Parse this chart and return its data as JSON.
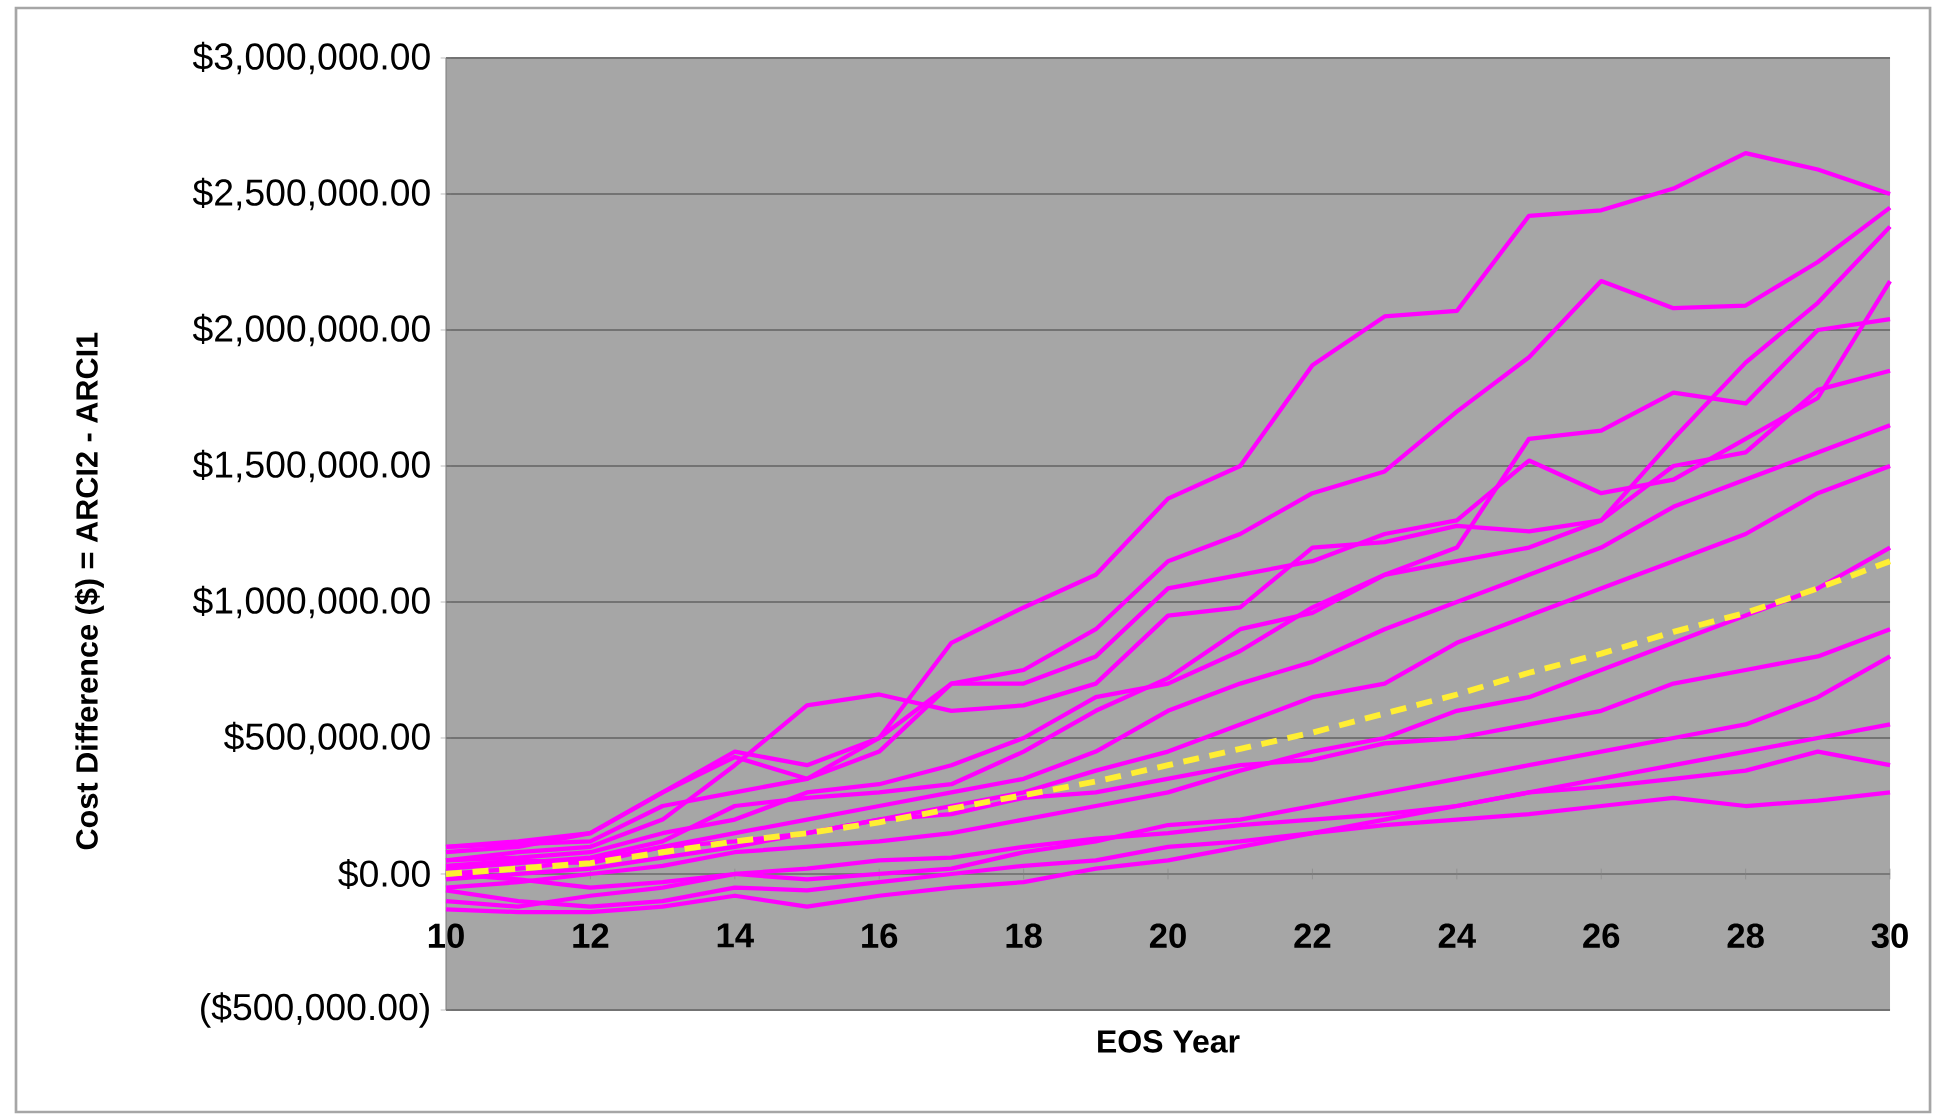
{
  "chart_data": {
    "type": "line",
    "xlabel": "EOS Year",
    "ylabel": "Cost Difference ($) = ARCI2 - ARCI1",
    "x": [
      10,
      11,
      12,
      13,
      14,
      15,
      16,
      17,
      18,
      19,
      20,
      21,
      22,
      23,
      24,
      25,
      26,
      27,
      28,
      29,
      30
    ],
    "xlim": [
      10,
      30
    ],
    "xticks": [
      10,
      12,
      14,
      16,
      18,
      20,
      22,
      24,
      26,
      28,
      30
    ],
    "ylim": [
      -500000,
      3000000
    ],
    "yticks": [
      {
        "value": -500000,
        "label": "($500,000.00)"
      },
      {
        "value": 0,
        "label": "$0.00"
      },
      {
        "value": 500000,
        "label": "$500,000.00"
      },
      {
        "value": 1000000,
        "label": "$1,000,000.00"
      },
      {
        "value": 1500000,
        "label": "$1,500,000.00"
      },
      {
        "value": 2000000,
        "label": "$2,000,000.00"
      },
      {
        "value": 2500000,
        "label": "$2,500,000.00"
      },
      {
        "value": 3000000,
        "label": "$3,000,000.00"
      }
    ],
    "grid": "y",
    "marker": "none",
    "series": [
      {
        "color": "#ff00ff",
        "values": [
          100000,
          120000,
          150000,
          300000,
          450000,
          400000,
          500000,
          850000,
          980000,
          1100000,
          1380000,
          1500000,
          1870000,
          2050000,
          2070000,
          2420000,
          2440000,
          2520000,
          2650000,
          2590000,
          2500000
        ]
      },
      {
        "color": "#ff00ff",
        "values": [
          100000,
          110000,
          120000,
          250000,
          300000,
          350000,
          450000,
          700000,
          750000,
          900000,
          1150000,
          1250000,
          1400000,
          1480000,
          1700000,
          1900000,
          2180000,
          2080000,
          2090000,
          2250000,
          2450000
        ]
      },
      {
        "color": "#ff00ff",
        "values": [
          50000,
          80000,
          100000,
          200000,
          400000,
          620000,
          660000,
          600000,
          620000,
          700000,
          950000,
          980000,
          1200000,
          1220000,
          1280000,
          1260000,
          1300000,
          1600000,
          1880000,
          2100000,
          2380000
        ]
      },
      {
        "color": "#ff00ff",
        "values": [
          80000,
          100000,
          150000,
          300000,
          430000,
          350000,
          500000,
          700000,
          700000,
          800000,
          1050000,
          1100000,
          1150000,
          1250000,
          1300000,
          1520000,
          1400000,
          1450000,
          1600000,
          1750000,
          2180000
        ]
      },
      {
        "color": "#ff00ff",
        "values": [
          50000,
          60000,
          80000,
          150000,
          200000,
          300000,
          330000,
          400000,
          500000,
          650000,
          700000,
          820000,
          980000,
          1100000,
          1200000,
          1600000,
          1630000,
          1770000,
          1730000,
          2000000,
          2040000
        ]
      },
      {
        "color": "#ff00ff",
        "values": [
          20000,
          40000,
          60000,
          120000,
          250000,
          280000,
          300000,
          330000,
          450000,
          600000,
          720000,
          900000,
          960000,
          1100000,
          1150000,
          1200000,
          1300000,
          1500000,
          1550000,
          1780000,
          1850000
        ]
      },
      {
        "color": "#ff00ff",
        "values": [
          0,
          20000,
          50000,
          100000,
          150000,
          200000,
          250000,
          300000,
          350000,
          450000,
          600000,
          700000,
          780000,
          900000,
          1000000,
          1100000,
          1200000,
          1350000,
          1450000,
          1550000,
          1650000
        ]
      },
      {
        "color": "#ff00ff",
        "values": [
          -20000,
          0,
          20000,
          60000,
          100000,
          150000,
          200000,
          250000,
          300000,
          380000,
          450000,
          550000,
          650000,
          700000,
          850000,
          950000,
          1050000,
          1150000,
          1250000,
          1400000,
          1500000
        ]
      },
      {
        "color": "#ff00ff",
        "values": [
          -50000,
          -30000,
          0,
          30000,
          80000,
          100000,
          120000,
          150000,
          200000,
          250000,
          300000,
          380000,
          450000,
          500000,
          600000,
          650000,
          750000,
          850000,
          950000,
          1050000,
          1200000
        ]
      },
      {
        "color": "#ff00ff",
        "values": [
          30000,
          50000,
          40000,
          100000,
          120000,
          150000,
          200000,
          220000,
          280000,
          300000,
          350000,
          400000,
          420000,
          480000,
          500000,
          550000,
          600000,
          700000,
          750000,
          800000,
          900000
        ]
      },
      {
        "color": "#ff00ff",
        "values": [
          -100000,
          -120000,
          -80000,
          -50000,
          0,
          -20000,
          0,
          20000,
          80000,
          120000,
          180000,
          200000,
          250000,
          300000,
          350000,
          400000,
          450000,
          500000,
          550000,
          650000,
          800000
        ]
      },
      {
        "color": "#ff00ff",
        "values": [
          -130000,
          -140000,
          -140000,
          -120000,
          -80000,
          -120000,
          -80000,
          -50000,
          -30000,
          20000,
          50000,
          100000,
          150000,
          200000,
          250000,
          300000,
          350000,
          400000,
          450000,
          500000,
          550000
        ]
      },
      {
        "color": "#ff00ff",
        "values": [
          0,
          -20000,
          -50000,
          -30000,
          0,
          20000,
          50000,
          60000,
          100000,
          130000,
          150000,
          180000,
          200000,
          220000,
          250000,
          300000,
          320000,
          350000,
          380000,
          450000,
          400000
        ]
      },
      {
        "color": "#ff00ff",
        "values": [
          -60000,
          -100000,
          -120000,
          -100000,
          -50000,
          -60000,
          -30000,
          0,
          30000,
          50000,
          100000,
          120000,
          150000,
          180000,
          200000,
          220000,
          250000,
          280000,
          250000,
          270000,
          300000
        ]
      },
      {
        "color": "#ffee33",
        "line_style": "dashed",
        "values": [
          0,
          20000,
          40000,
          80000,
          120000,
          150000,
          190000,
          240000,
          290000,
          340000,
          400000,
          460000,
          520000,
          590000,
          660000,
          740000,
          810000,
          890000,
          960000,
          1050000,
          1150000
        ]
      }
    ]
  }
}
